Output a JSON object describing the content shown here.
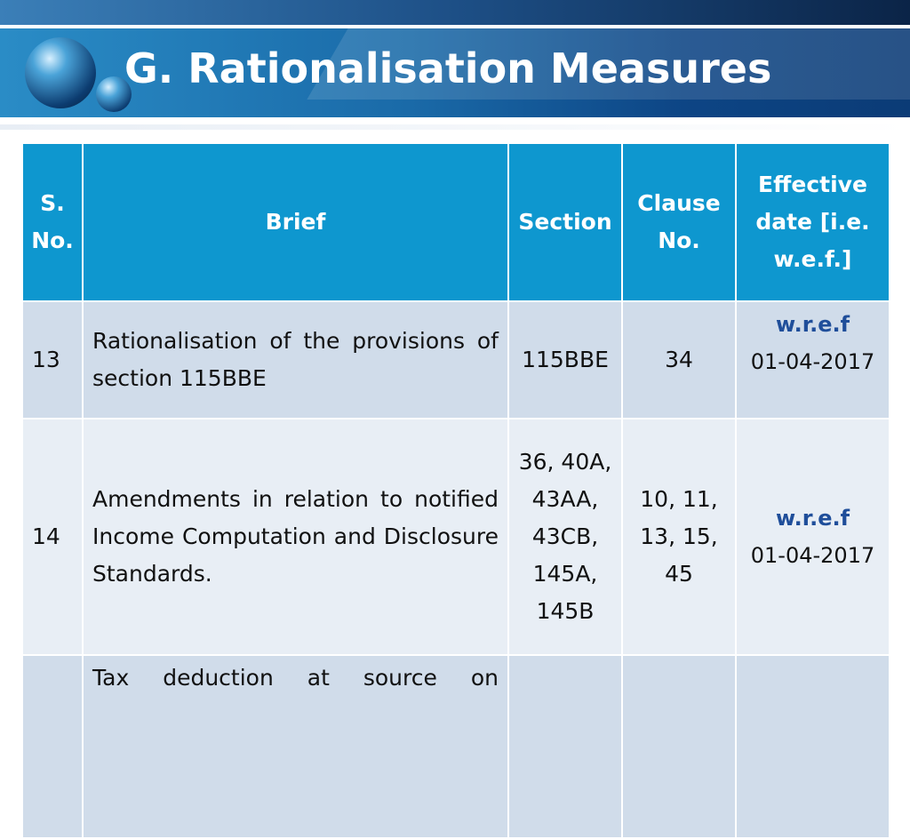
{
  "title": "G. Rationalisation Measures",
  "table": {
    "columns": [
      "S. No.",
      "Brief",
      "Section",
      "Clause No.",
      "Effective date [i.e. w.e.f.]"
    ],
    "rows": [
      {
        "sno": "13",
        "brief": "Rationalisation of the provisions of section 115BBE",
        "section": "115BBE",
        "clause": "34",
        "effective_label": "w.r.e.f",
        "effective_date": "01-04-2017"
      },
      {
        "sno": "14",
        "brief": "Amendments in relation to notified Income Computation and Disclosure Standards.",
        "section": "36, 40A, 43AA, 43CB, 145A, 145B",
        "clause": "10, 11, 13, 15, 45",
        "effective_label": "w.r.e.f",
        "effective_date": "01-04-2017"
      },
      {
        "brief": "Tax deduction at source on"
      }
    ]
  }
}
